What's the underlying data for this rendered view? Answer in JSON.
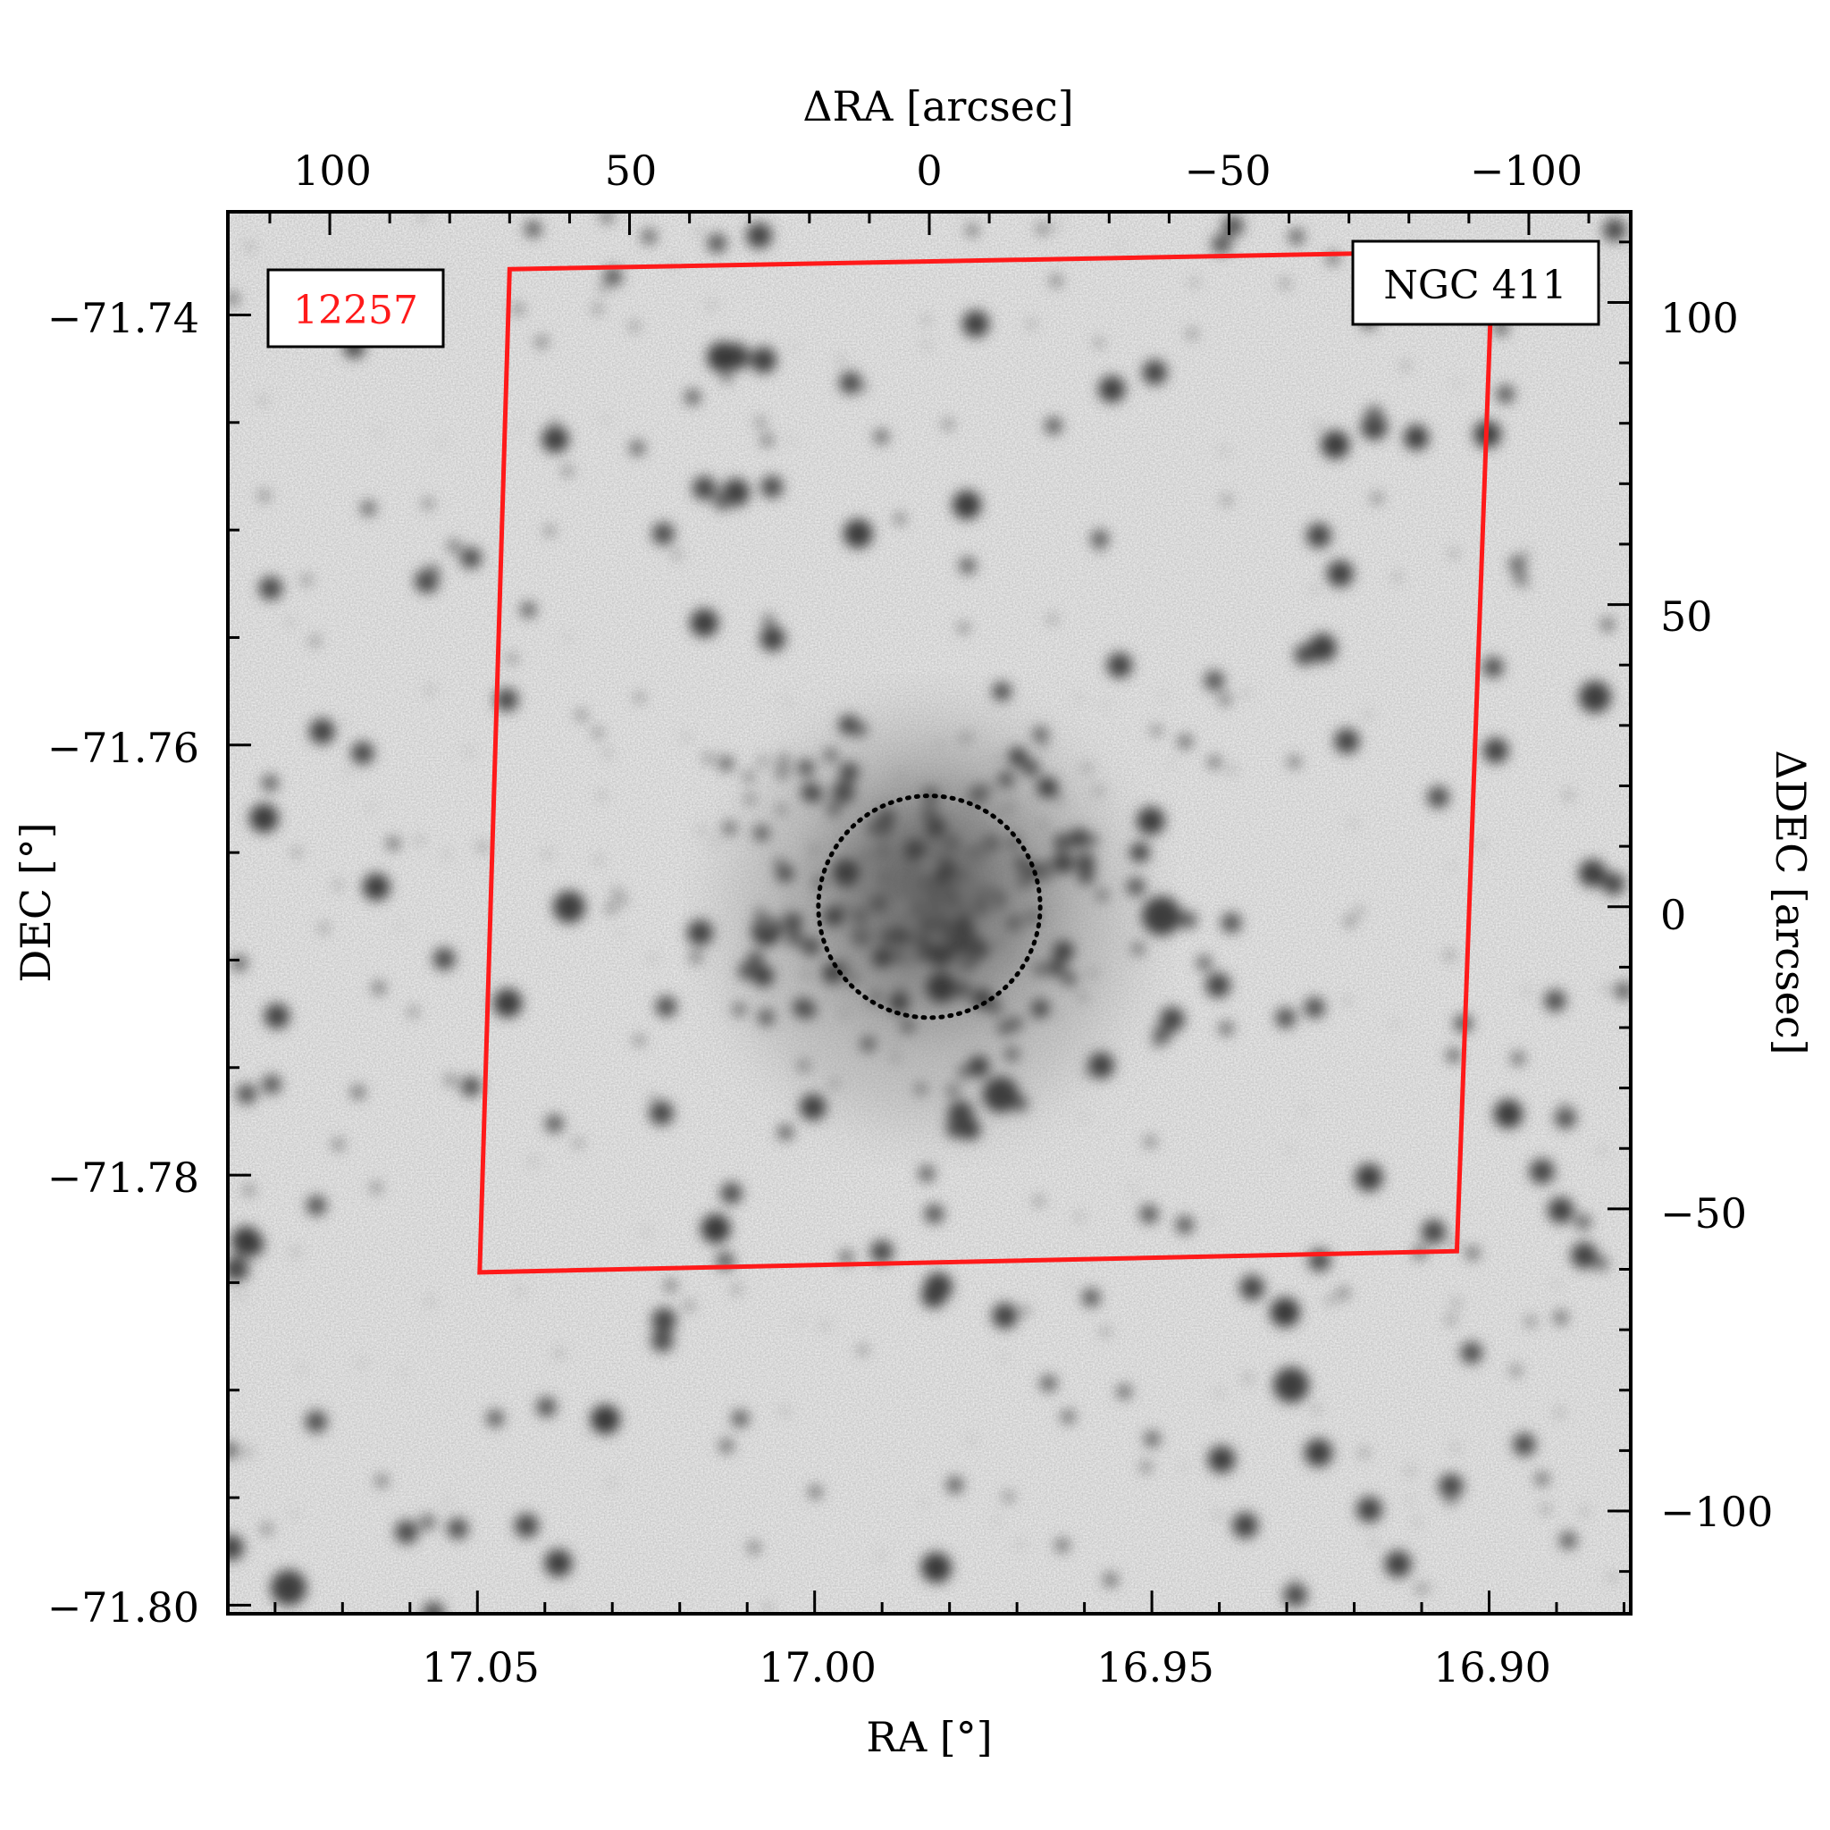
{
  "figure": {
    "axes": {
      "bottom": {
        "label": "RA [°]",
        "ticks": [
          17.05,
          17.0,
          16.95,
          16.9
        ],
        "tick_labels": [
          "17.05",
          "17.00",
          "16.95",
          "16.90"
        ],
        "range": [
          17.087,
          16.879
        ]
      },
      "left": {
        "label": "DEC [°]",
        "ticks": [
          -71.74,
          -71.76,
          -71.78,
          -71.8
        ],
        "tick_labels": [
          "−71.74",
          "−71.76",
          "−71.78",
          "−71.80"
        ],
        "range": [
          -71.7352,
          -71.8004
        ]
      },
      "top": {
        "label": "ΔRA [arcsec]",
        "ticks": [
          100,
          50,
          0,
          -50,
          -100
        ],
        "tick_labels": [
          "100",
          "50",
          "0",
          "−50",
          "−100"
        ],
        "range": [
          117,
          -117
        ]
      },
      "right": {
        "label": "ΔDEC [arcsec]",
        "ticks": [
          100,
          50,
          0,
          -50,
          -100
        ],
        "tick_labels": [
          "100",
          "50",
          "0",
          "−50",
          "−100"
        ],
        "range": [
          115,
          -117
        ]
      }
    },
    "labels": {
      "observation_id": "12257",
      "cluster_name": "NGC 411"
    },
    "colors": {
      "footprint": "#ff1a1a",
      "observation_id_text": "#ff1a1a",
      "core_circle": "#000000",
      "background": "#ffffff"
    },
    "footprint_corners_arcsec": [
      [
        70,
        105.5
      ],
      [
        -94,
        108.5
      ],
      [
        -88,
        -57
      ],
      [
        75,
        -60.5
      ]
    ],
    "core_circle": {
      "center_arcsec": [
        0,
        0
      ],
      "radius_arcsec": 18.5
    }
  }
}
